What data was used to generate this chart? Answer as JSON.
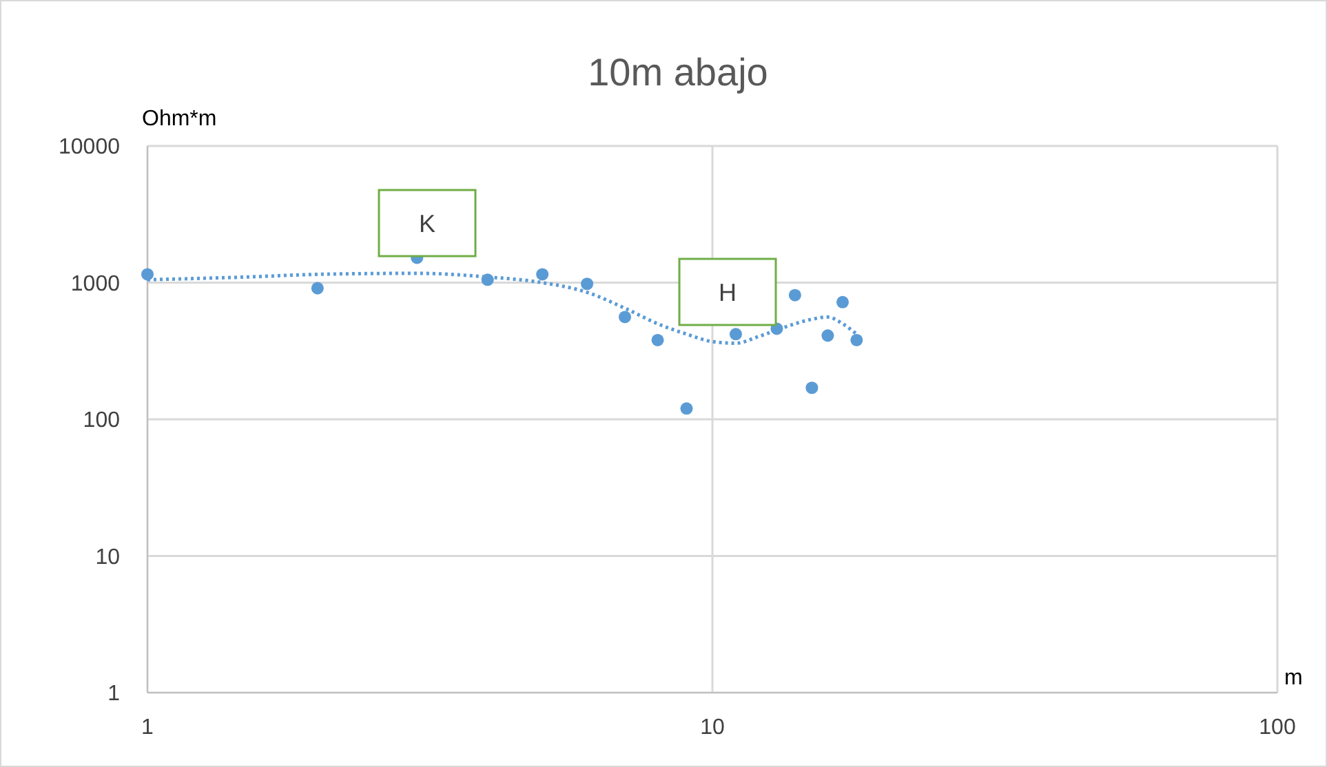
{
  "chart_data": {
    "type": "scatter",
    "title": "10m abajo",
    "xlabel": "m",
    "ylabel": "Ohm*m",
    "log": "xy",
    "grid": true,
    "marker": "circle",
    "xlim": [
      1,
      100
    ],
    "xticks": [
      1,
      10,
      100
    ],
    "ylim": [
      1,
      10000
    ],
    "yticks": [
      1,
      10,
      100,
      1000,
      10000
    ],
    "series": [
      {
        "color": "#5b9bd5",
        "x": [
          1,
          2,
          3,
          4,
          5,
          6,
          7,
          8,
          9,
          11,
          13,
          14,
          15,
          16,
          17,
          18
        ],
        "values": [
          1150,
          910,
          1520,
          1050,
          1150,
          980,
          560,
          380,
          120,
          420,
          460,
          810,
          170,
          410,
          720,
          380
        ]
      },
      {
        "type": "line",
        "color": "#5b9bd5",
        "line_style": "dotted",
        "marker": "none",
        "x": [
          1,
          1.5,
          2,
          3,
          4,
          5,
          6,
          7,
          8,
          9,
          10,
          11,
          12,
          13,
          14,
          15,
          16,
          17,
          18
        ],
        "values": [
          1050,
          1100,
          1150,
          1170,
          1100,
          1000,
          850,
          650,
          500,
          420,
          370,
          360,
          400,
          450,
          500,
          540,
          560,
          500,
          420
        ]
      }
    ],
    "annotations": [
      "K",
      "H"
    ]
  }
}
